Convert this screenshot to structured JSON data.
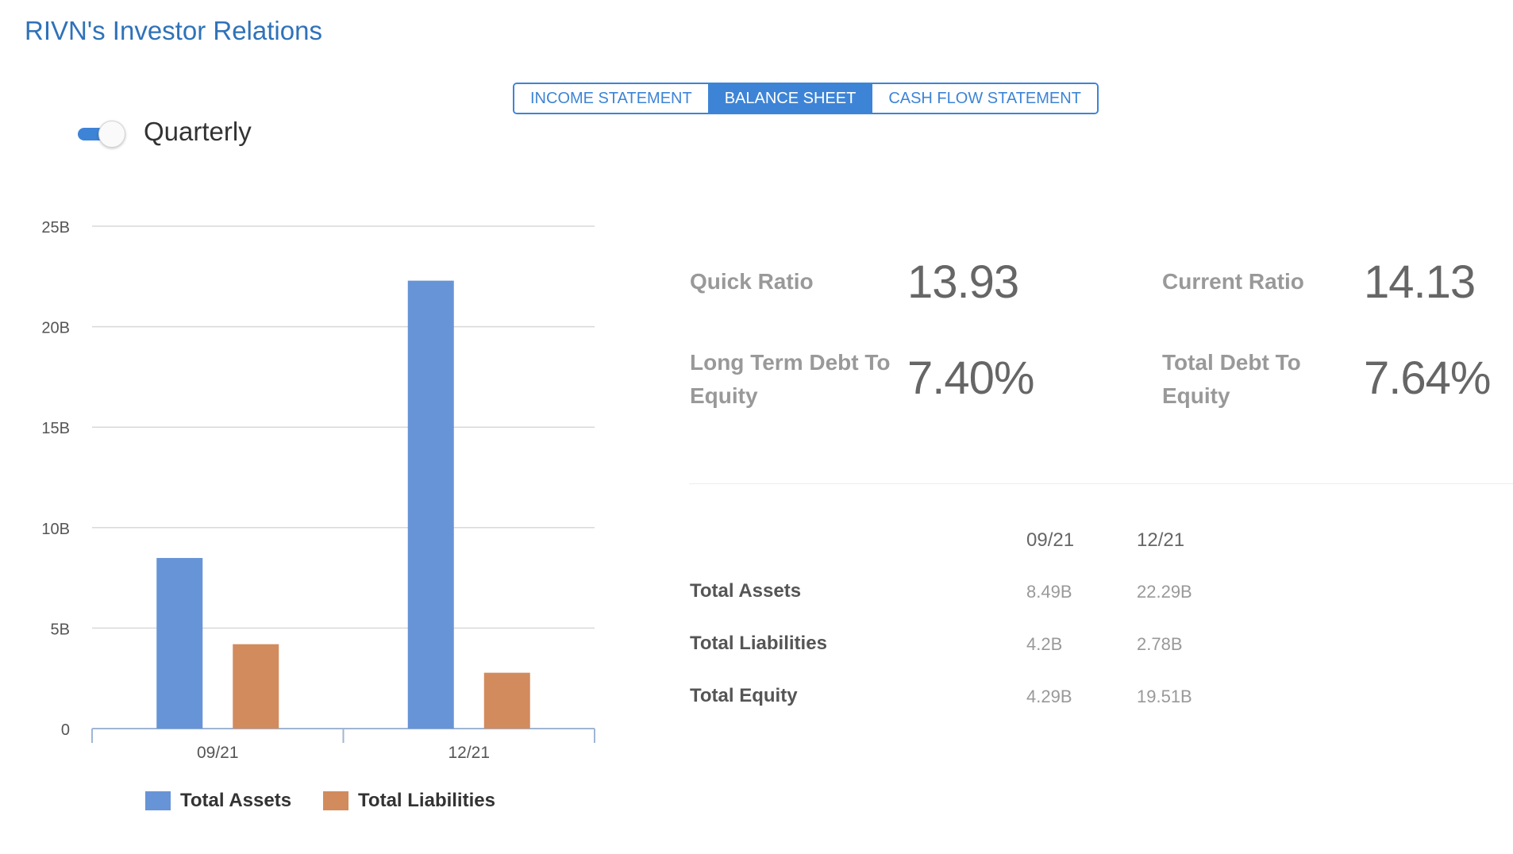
{
  "header": {
    "title": "RIVN's Investor Relations"
  },
  "tabs": [
    {
      "label": "INCOME STATEMENT",
      "active": false
    },
    {
      "label": "BALANCE SHEET",
      "active": true
    },
    {
      "label": "CASH FLOW STATEMENT",
      "active": false
    }
  ],
  "period_toggle": {
    "label": "Quarterly",
    "on": true
  },
  "colors": {
    "accent": "#3d84d6",
    "assets": "#6794d6",
    "liabilities": "#d28b5d"
  },
  "chart_data": {
    "type": "bar",
    "categories": [
      "09/21",
      "12/21"
    ],
    "series": [
      {
        "name": "Total Assets",
        "values": [
          8.49,
          22.29
        ]
      },
      {
        "name": "Total Liabilities",
        "values": [
          4.2,
          2.78
        ]
      }
    ],
    "ylim": [
      0,
      25
    ],
    "yticks": [
      {
        "value": 0,
        "label": "0"
      },
      {
        "value": 5,
        "label": "5B"
      },
      {
        "value": 10,
        "label": "10B"
      },
      {
        "value": 15,
        "label": "15B"
      },
      {
        "value": 20,
        "label": "20B"
      },
      {
        "value": 25,
        "label": "25B"
      }
    ],
    "grid": true,
    "legend_position": "bottom"
  },
  "ratios": {
    "quick": {
      "label": "Quick Ratio",
      "value": "13.93"
    },
    "current": {
      "label": "Current Ratio",
      "value": "14.13"
    },
    "lt_debt_equity": {
      "label_line1": "Long Term Debt To",
      "label_line2": "Equity",
      "value": "7.40%"
    },
    "total_debt_equity": {
      "label_line1": "Total Debt To",
      "label_line2": "Equity",
      "value": "7.64%"
    }
  },
  "table": {
    "columns": [
      "09/21",
      "12/21"
    ],
    "rows": [
      {
        "label": "Total Assets",
        "values": [
          "8.49B",
          "22.29B"
        ]
      },
      {
        "label": "Total Liabilities",
        "values": [
          "4.2B",
          "2.78B"
        ]
      },
      {
        "label": "Total Equity",
        "values": [
          "4.29B",
          "19.51B"
        ]
      }
    ]
  }
}
